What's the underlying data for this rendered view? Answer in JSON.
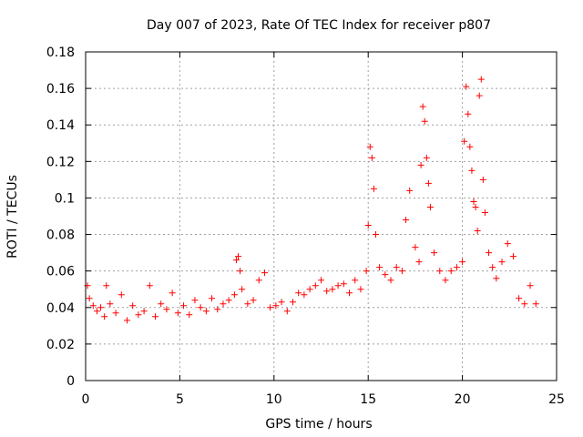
{
  "chart_data": {
    "type": "scatter",
    "title": "Day 007 of 2023, Rate Of TEC Index for receiver p807",
    "xlabel": "GPS time / hours",
    "ylabel": "ROTI / TECUs",
    "xlim": [
      0,
      25
    ],
    "ylim": [
      0,
      0.18
    ],
    "x_ticks": [
      "0",
      "5",
      "10",
      "15",
      "20",
      "25"
    ],
    "y_ticks": [
      "0",
      "0.02",
      "0.04",
      "0.06",
      "0.08",
      "0.1",
      "0.12",
      "0.14",
      "0.16",
      "0.18"
    ],
    "grid": true,
    "marker": "+",
    "color": "#ff0000",
    "series": [
      {
        "x": [
          0.1,
          0.2,
          0.4,
          0.6,
          0.8,
          1.0,
          1.1,
          1.3,
          1.6,
          1.9,
          2.2,
          2.5,
          2.8,
          3.1,
          3.4,
          3.7,
          4.0,
          4.3,
          4.6,
          4.9,
          5.2,
          5.5,
          5.8,
          6.1,
          6.4,
          6.7,
          7.0,
          7.3,
          7.6,
          7.9,
          8.0,
          8.1,
          8.2,
          8.3,
          8.6,
          8.9,
          9.2,
          9.5,
          9.8,
          10.1,
          10.4,
          10.7,
          11.0,
          11.3,
          11.6,
          11.9,
          12.2,
          12.5,
          12.8,
          13.1,
          13.4,
          13.7,
          14.0,
          14.3,
          14.6,
          14.9,
          15.0,
          15.1,
          15.2,
          15.3,
          15.4,
          15.6,
          15.9,
          16.2,
          16.5,
          16.8,
          17.0,
          17.2,
          17.5,
          17.7,
          17.8,
          17.9,
          18.0,
          18.1,
          18.2,
          18.3,
          18.5,
          18.8,
          19.1,
          19.4,
          19.7,
          20.0,
          20.1,
          20.2,
          20.3,
          20.4,
          20.5,
          20.6,
          20.7,
          20.8,
          20.9,
          21.0,
          21.1,
          21.2,
          21.4,
          21.6,
          21.8,
          22.1,
          22.4,
          22.7,
          23.0,
          23.3,
          23.6,
          23.9
        ],
        "y": [
          0.052,
          0.045,
          0.041,
          0.038,
          0.04,
          0.035,
          0.052,
          0.042,
          0.037,
          0.047,
          0.033,
          0.041,
          0.036,
          0.038,
          0.052,
          0.035,
          0.042,
          0.039,
          0.048,
          0.037,
          0.041,
          0.036,
          0.044,
          0.04,
          0.038,
          0.045,
          0.039,
          0.042,
          0.044,
          0.047,
          0.066,
          0.068,
          0.06,
          0.05,
          0.042,
          0.044,
          0.055,
          0.059,
          0.04,
          0.041,
          0.043,
          0.038,
          0.043,
          0.048,
          0.047,
          0.05,
          0.052,
          0.055,
          0.049,
          0.05,
          0.052,
          0.053,
          0.048,
          0.055,
          0.05,
          0.06,
          0.085,
          0.128,
          0.122,
          0.105,
          0.08,
          0.062,
          0.058,
          0.055,
          0.062,
          0.06,
          0.088,
          0.104,
          0.073,
          0.065,
          0.118,
          0.15,
          0.142,
          0.122,
          0.108,
          0.095,
          0.07,
          0.06,
          0.055,
          0.06,
          0.062,
          0.065,
          0.131,
          0.161,
          0.146,
          0.128,
          0.115,
          0.098,
          0.095,
          0.082,
          0.156,
          0.165,
          0.11,
          0.092,
          0.07,
          0.062,
          0.056,
          0.065,
          0.075,
          0.068,
          0.045,
          0.042,
          0.052,
          0.042
        ]
      }
    ]
  }
}
